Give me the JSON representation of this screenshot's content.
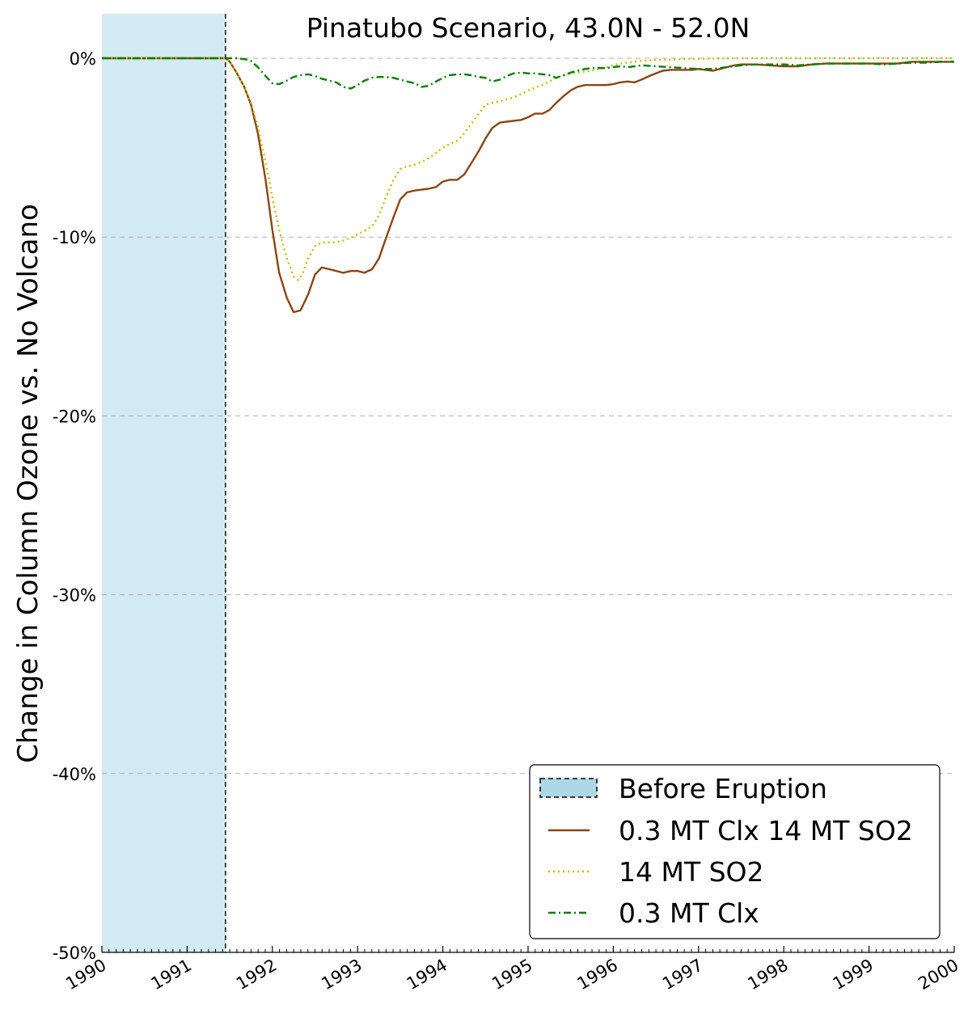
{
  "chart_data": {
    "type": "line",
    "title": "Pinatubo Scenario, 43.0N - 52.0N",
    "xlabel": "",
    "ylabel": "Change in Column Ozone vs. No Volcano",
    "xlim": [
      1990,
      2000
    ],
    "ylim": [
      -50,
      0
    ],
    "x_tick_labels": [
      "1990",
      "1991",
      "1992",
      "1993",
      "1994",
      "1995",
      "1996",
      "1997",
      "1998",
      "1999",
      "2000"
    ],
    "y_ticks": [
      0,
      -10,
      -20,
      -30,
      -40,
      -50
    ],
    "y_tick_labels": [
      "0%",
      "-10%",
      "-20%",
      "-30%",
      "-40%",
      "-50%"
    ],
    "grid": "horizontal dashed",
    "legend_position": "lower-right",
    "eruption_year": 1991.45,
    "shaded_region": {
      "name": "Before Eruption",
      "from": 1990,
      "to": 1991.45,
      "color": "#add8e6"
    },
    "series": [
      {
        "name": "0.3 MT Clx 14 MT SO2",
        "color": "#8b4513",
        "style": "solid",
        "points": [
          [
            1990,
            0
          ],
          [
            1991.45,
            0
          ],
          [
            1991.5,
            -0.2
          ],
          [
            1991.58,
            -0.8
          ],
          [
            1991.67,
            -1.6
          ],
          [
            1991.75,
            -2.6
          ],
          [
            1991.83,
            -4.2
          ],
          [
            1991.92,
            -6.8
          ],
          [
            1992.0,
            -9.6
          ],
          [
            1992.08,
            -12.0
          ],
          [
            1992.17,
            -13.4
          ],
          [
            1992.25,
            -14.2
          ],
          [
            1992.33,
            -14.1
          ],
          [
            1992.42,
            -13.2
          ],
          [
            1992.5,
            -12.1
          ],
          [
            1992.58,
            -11.7
          ],
          [
            1992.67,
            -11.8
          ],
          [
            1992.75,
            -11.9
          ],
          [
            1992.83,
            -12.0
          ],
          [
            1992.92,
            -11.9
          ],
          [
            1993.0,
            -11.9
          ],
          [
            1993.08,
            -12.0
          ],
          [
            1993.17,
            -11.8
          ],
          [
            1993.25,
            -11.2
          ],
          [
            1993.33,
            -10.1
          ],
          [
            1993.42,
            -8.9
          ],
          [
            1993.5,
            -7.9
          ],
          [
            1993.58,
            -7.5
          ],
          [
            1993.67,
            -7.4
          ],
          [
            1993.75,
            -7.35
          ],
          [
            1993.83,
            -7.3
          ],
          [
            1993.92,
            -7.2
          ],
          [
            1994.0,
            -6.9
          ],
          [
            1994.08,
            -6.8
          ],
          [
            1994.17,
            -6.8
          ],
          [
            1994.25,
            -6.5
          ],
          [
            1994.33,
            -5.9
          ],
          [
            1994.42,
            -5.2
          ],
          [
            1994.5,
            -4.5
          ],
          [
            1994.58,
            -3.9
          ],
          [
            1994.67,
            -3.6
          ],
          [
            1994.75,
            -3.55
          ],
          [
            1994.83,
            -3.5
          ],
          [
            1994.92,
            -3.45
          ],
          [
            1995.0,
            -3.3
          ],
          [
            1995.08,
            -3.1
          ],
          [
            1995.17,
            -3.1
          ],
          [
            1995.25,
            -2.9
          ],
          [
            1995.33,
            -2.5
          ],
          [
            1995.42,
            -2.1
          ],
          [
            1995.5,
            -1.8
          ],
          [
            1995.58,
            -1.6
          ],
          [
            1995.67,
            -1.5
          ],
          [
            1995.75,
            -1.5
          ],
          [
            1995.83,
            -1.5
          ],
          [
            1995.92,
            -1.5
          ],
          [
            1996.0,
            -1.45
          ],
          [
            1996.08,
            -1.35
          ],
          [
            1996.17,
            -1.3
          ],
          [
            1996.25,
            -1.35
          ],
          [
            1996.33,
            -1.2
          ],
          [
            1996.42,
            -1.0
          ],
          [
            1996.5,
            -0.85
          ],
          [
            1996.58,
            -0.7
          ],
          [
            1996.67,
            -0.65
          ],
          [
            1996.75,
            -0.65
          ],
          [
            1996.83,
            -0.65
          ],
          [
            1996.92,
            -0.65
          ],
          [
            1997.0,
            -0.6
          ],
          [
            1997.08,
            -0.65
          ],
          [
            1997.17,
            -0.7
          ],
          [
            1997.25,
            -0.6
          ],
          [
            1997.33,
            -0.5
          ],
          [
            1997.42,
            -0.4
          ],
          [
            1997.5,
            -0.35
          ],
          [
            1997.67,
            -0.35
          ],
          [
            1997.83,
            -0.4
          ],
          [
            1998.0,
            -0.45
          ],
          [
            1998.17,
            -0.45
          ],
          [
            1998.33,
            -0.35
          ],
          [
            1998.5,
            -0.3
          ],
          [
            1998.67,
            -0.3
          ],
          [
            1998.83,
            -0.3
          ],
          [
            1999.0,
            -0.3
          ],
          [
            1999.17,
            -0.3
          ],
          [
            1999.33,
            -0.3
          ],
          [
            1999.5,
            -0.2
          ],
          [
            1999.67,
            -0.2
          ],
          [
            1999.83,
            -0.2
          ],
          [
            2000.0,
            -0.2
          ]
        ]
      },
      {
        "name": "14 MT SO2",
        "color": "#bfbf00",
        "style": "dotted",
        "points": [
          [
            1990,
            0
          ],
          [
            1991.45,
            0
          ],
          [
            1991.5,
            -0.2
          ],
          [
            1991.58,
            -0.8
          ],
          [
            1991.67,
            -1.6
          ],
          [
            1991.75,
            -2.5
          ],
          [
            1991.83,
            -3.8
          ],
          [
            1991.92,
            -5.8
          ],
          [
            1992.0,
            -7.8
          ],
          [
            1992.08,
            -9.6
          ],
          [
            1992.17,
            -11.2
          ],
          [
            1992.25,
            -12.2
          ],
          [
            1992.3,
            -12.4
          ],
          [
            1992.35,
            -12.1
          ],
          [
            1992.42,
            -11.2
          ],
          [
            1992.5,
            -10.5
          ],
          [
            1992.58,
            -10.3
          ],
          [
            1992.67,
            -10.3
          ],
          [
            1992.75,
            -10.3
          ],
          [
            1992.83,
            -10.2
          ],
          [
            1992.92,
            -10.05
          ],
          [
            1993.0,
            -9.85
          ],
          [
            1993.08,
            -9.65
          ],
          [
            1993.17,
            -9.4
          ],
          [
            1993.25,
            -8.8
          ],
          [
            1993.33,
            -7.8
          ],
          [
            1993.42,
            -6.8
          ],
          [
            1993.5,
            -6.2
          ],
          [
            1993.58,
            -6.05
          ],
          [
            1993.67,
            -5.95
          ],
          [
            1993.75,
            -5.8
          ],
          [
            1993.83,
            -5.6
          ],
          [
            1993.92,
            -5.3
          ],
          [
            1994.0,
            -5.0
          ],
          [
            1994.08,
            -4.8
          ],
          [
            1994.17,
            -4.6
          ],
          [
            1994.25,
            -4.2
          ],
          [
            1994.33,
            -3.7
          ],
          [
            1994.42,
            -3.1
          ],
          [
            1994.5,
            -2.6
          ],
          [
            1994.58,
            -2.5
          ],
          [
            1994.67,
            -2.4
          ],
          [
            1994.75,
            -2.3
          ],
          [
            1994.83,
            -2.2
          ],
          [
            1994.92,
            -2.0
          ],
          [
            1995.0,
            -1.8
          ],
          [
            1995.08,
            -1.65
          ],
          [
            1995.17,
            -1.5
          ],
          [
            1995.25,
            -1.3
          ],
          [
            1995.33,
            -1.1
          ],
          [
            1995.42,
            -0.95
          ],
          [
            1995.5,
            -0.85
          ],
          [
            1995.58,
            -0.8
          ],
          [
            1995.67,
            -0.75
          ],
          [
            1995.75,
            -0.7
          ],
          [
            1995.83,
            -0.6
          ],
          [
            1995.92,
            -0.5
          ],
          [
            1996.0,
            -0.4
          ],
          [
            1996.08,
            -0.3
          ],
          [
            1996.17,
            -0.25
          ],
          [
            1996.33,
            -0.15
          ],
          [
            1996.5,
            -0.1
          ],
          [
            1996.67,
            -0.08
          ],
          [
            1996.83,
            -0.05
          ],
          [
            1997.0,
            -0.03
          ],
          [
            1997.5,
            0.0
          ],
          [
            1998.0,
            0.0
          ],
          [
            1998.5,
            0.0
          ],
          [
            1999.0,
            0.0
          ],
          [
            1999.5,
            0.0
          ],
          [
            2000.0,
            0.0
          ]
        ]
      },
      {
        "name": "0.3 MT Clx",
        "color": "#008000",
        "style": "dash-dot",
        "points": [
          [
            1990,
            0
          ],
          [
            1991.45,
            0
          ],
          [
            1991.58,
            0
          ],
          [
            1991.67,
            -0.05
          ],
          [
            1991.75,
            -0.15
          ],
          [
            1991.83,
            -0.5
          ],
          [
            1991.92,
            -1.0
          ],
          [
            1992.0,
            -1.4
          ],
          [
            1992.08,
            -1.45
          ],
          [
            1992.17,
            -1.25
          ],
          [
            1992.25,
            -1.05
          ],
          [
            1992.33,
            -0.95
          ],
          [
            1992.42,
            -0.9
          ],
          [
            1992.5,
            -1.0
          ],
          [
            1992.58,
            -1.15
          ],
          [
            1992.67,
            -1.25
          ],
          [
            1992.75,
            -1.35
          ],
          [
            1992.83,
            -1.6
          ],
          [
            1992.92,
            -1.7
          ],
          [
            1993.0,
            -1.5
          ],
          [
            1993.08,
            -1.25
          ],
          [
            1993.17,
            -1.1
          ],
          [
            1993.25,
            -1.05
          ],
          [
            1993.33,
            -1.05
          ],
          [
            1993.42,
            -1.1
          ],
          [
            1993.5,
            -1.2
          ],
          [
            1993.58,
            -1.3
          ],
          [
            1993.67,
            -1.4
          ],
          [
            1993.75,
            -1.6
          ],
          [
            1993.83,
            -1.55
          ],
          [
            1993.92,
            -1.3
          ],
          [
            1994.0,
            -1.1
          ],
          [
            1994.08,
            -0.95
          ],
          [
            1994.17,
            -0.9
          ],
          [
            1994.25,
            -0.9
          ],
          [
            1994.33,
            -0.95
          ],
          [
            1994.42,
            -1.05
          ],
          [
            1994.5,
            -1.1
          ],
          [
            1994.58,
            -1.3
          ],
          [
            1994.67,
            -1.2
          ],
          [
            1994.75,
            -1.0
          ],
          [
            1994.83,
            -0.85
          ],
          [
            1994.92,
            -0.8
          ],
          [
            1995.0,
            -0.85
          ],
          [
            1995.08,
            -0.85
          ],
          [
            1995.17,
            -0.9
          ],
          [
            1995.25,
            -0.95
          ],
          [
            1995.33,
            -1.1
          ],
          [
            1995.42,
            -0.95
          ],
          [
            1995.5,
            -0.8
          ],
          [
            1995.58,
            -0.7
          ],
          [
            1995.67,
            -0.6
          ],
          [
            1995.75,
            -0.55
          ],
          [
            1995.83,
            -0.55
          ],
          [
            1995.92,
            -0.55
          ],
          [
            1996.0,
            -0.5
          ],
          [
            1996.08,
            -0.45
          ],
          [
            1996.17,
            -0.5
          ],
          [
            1996.25,
            -0.45
          ],
          [
            1996.33,
            -0.4
          ],
          [
            1996.5,
            -0.45
          ],
          [
            1996.67,
            -0.5
          ],
          [
            1996.83,
            -0.55
          ],
          [
            1997.0,
            -0.6
          ],
          [
            1997.17,
            -0.6
          ],
          [
            1997.33,
            -0.5
          ],
          [
            1997.5,
            -0.4
          ],
          [
            1997.67,
            -0.35
          ],
          [
            1997.83,
            -0.35
          ],
          [
            1998.0,
            -0.35
          ],
          [
            1998.17,
            -0.4
          ],
          [
            1998.33,
            -0.35
          ],
          [
            1998.5,
            -0.3
          ],
          [
            1998.67,
            -0.3
          ],
          [
            1998.83,
            -0.3
          ],
          [
            1999.0,
            -0.3
          ],
          [
            1999.17,
            -0.35
          ],
          [
            1999.33,
            -0.3
          ],
          [
            1999.5,
            -0.25
          ],
          [
            1999.67,
            -0.25
          ],
          [
            1999.83,
            -0.2
          ],
          [
            2000.0,
            -0.2
          ]
        ]
      }
    ]
  }
}
